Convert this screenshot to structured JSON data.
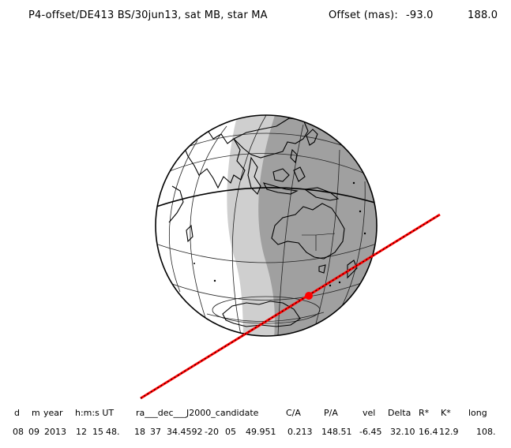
{
  "header": {
    "title": "P4-offset/DE413 BS/30jun13, sat MB, star MA",
    "offset_label": "Offset (mas):",
    "offset_ra": "-93.0",
    "offset_dec": "188.0"
  },
  "table": {
    "headers": [
      "d",
      "m",
      "year",
      "h:m:s UT",
      "ra___dec___J2000_candidate",
      "C/A",
      "P/A",
      "vel",
      "Delta",
      "R*",
      "K*",
      "long"
    ],
    "values": [
      "08",
      "09",
      "2013",
      "12",
      "15",
      "48.",
      "18",
      "37",
      "34.4592",
      "-20",
      "05",
      "49.951",
      "0.213",
      "148.51",
      "-6.45",
      "32.10",
      "16.4",
      "12.9",
      "108."
    ]
  },
  "colors": {
    "night": "#a0a0a0",
    "twilight": "#cfcfcf",
    "day": "#ffffff",
    "track": "#ff0000",
    "outline": "#000000"
  },
  "icons": {
    "event_marker": "red-dot-icon"
  }
}
